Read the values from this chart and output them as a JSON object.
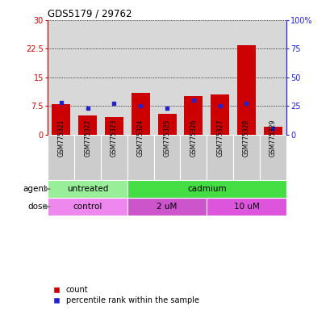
{
  "title": "GDS5179 / 29762",
  "samples": [
    "GSM775321",
    "GSM775322",
    "GSM775323",
    "GSM775324",
    "GSM775325",
    "GSM775326",
    "GSM775327",
    "GSM775328",
    "GSM775329"
  ],
  "count_values": [
    8.0,
    5.0,
    4.5,
    11.0,
    5.5,
    10.0,
    10.5,
    23.5,
    2.0
  ],
  "percentile_values": [
    28,
    23,
    27,
    25,
    23,
    30,
    25,
    27,
    5
  ],
  "left_yticks": [
    0,
    7.5,
    15,
    22.5,
    30
  ],
  "left_yticklabels": [
    "0",
    "7.5",
    "15",
    "22.5",
    "30"
  ],
  "right_yticks": [
    0,
    25,
    50,
    75,
    100
  ],
  "right_yticklabels": [
    "0",
    "25",
    "50",
    "75",
    "100%"
  ],
  "left_ylim": [
    0,
    30
  ],
  "right_ylim": [
    0,
    100
  ],
  "bar_color": "#cc0000",
  "dot_color": "#2222cc",
  "agent_groups": [
    {
      "label": "untreated",
      "start": 0,
      "end": 3,
      "color": "#99ee99"
    },
    {
      "label": "cadmium",
      "start": 3,
      "end": 9,
      "color": "#44dd44"
    }
  ],
  "dose_groups": [
    {
      "label": "control",
      "start": 0,
      "end": 3,
      "color": "#ee88ee"
    },
    {
      "label": "2 uM",
      "start": 3,
      "end": 6,
      "color": "#cc55cc"
    },
    {
      "label": "10 uM",
      "start": 6,
      "end": 9,
      "color": "#dd55dd"
    }
  ],
  "agent_label": "agent",
  "dose_label": "dose",
  "legend_count_label": "count",
  "legend_percentile_label": "percentile rank within the sample",
  "bg_color": "#ffffff",
  "ax_bg_color": "#d8d8d8",
  "sample_box_color": "#cccccc",
  "left_tick_color": "#cc0000",
  "right_tick_color": "#2222cc"
}
